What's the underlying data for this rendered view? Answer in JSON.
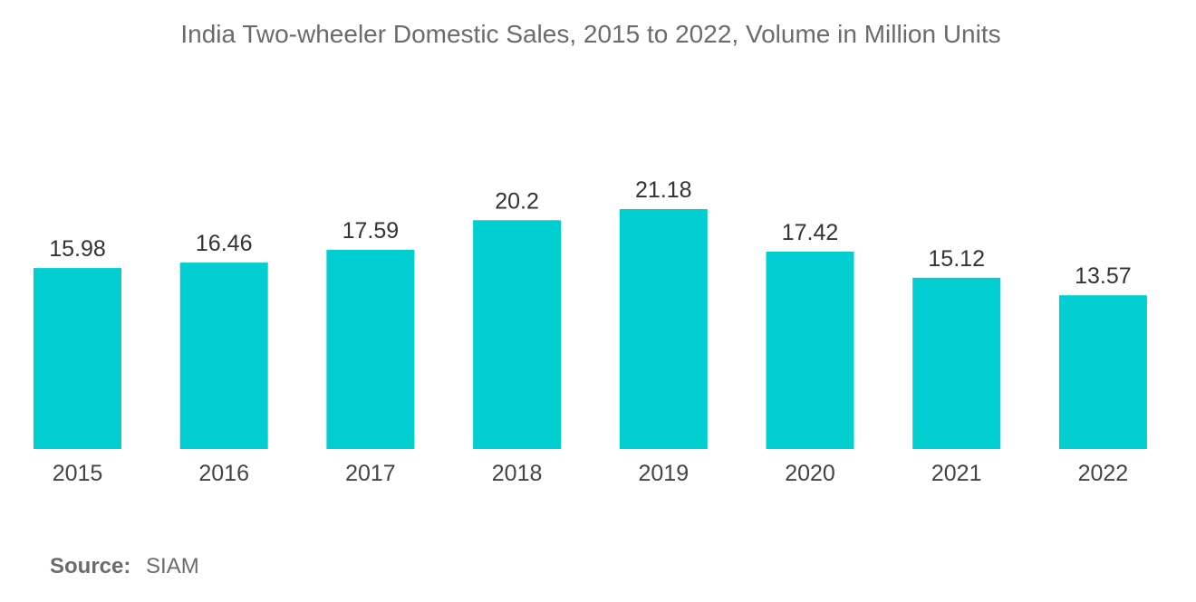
{
  "chart_data": {
    "type": "bar",
    "title": "India Two-wheeler Domestic Sales, 2015 to 2022, Volume in Million Units",
    "categories": [
      "2015",
      "2016",
      "2017",
      "2018",
      "2019",
      "2020",
      "2021",
      "2022"
    ],
    "values": [
      15.98,
      16.46,
      17.59,
      20.2,
      21.18,
      17.42,
      15.12,
      13.57
    ],
    "value_labels": [
      "15.98",
      "16.46",
      "17.59",
      "20.2",
      "21.18",
      "17.42",
      "15.12",
      "13.57"
    ],
    "xlabel": "",
    "ylabel": "",
    "ylim": [
      0,
      21.18
    ],
    "grid": false,
    "bar_color": "#00ced1"
  },
  "source": {
    "label": "Source:",
    "value": "SIAM"
  }
}
